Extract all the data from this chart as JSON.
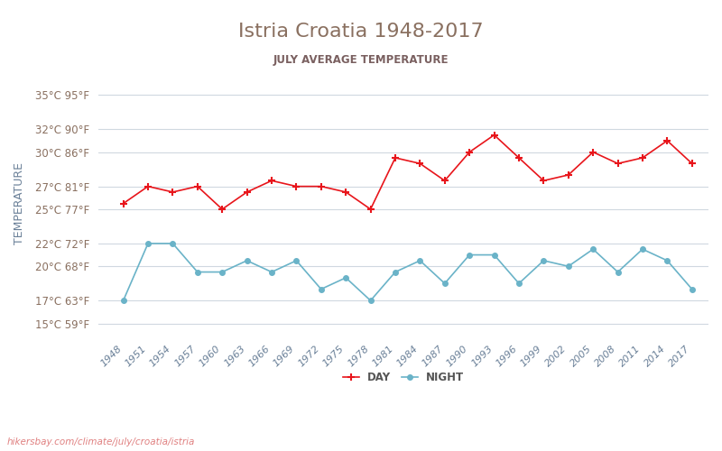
{
  "title": "Istria Croatia 1948-2017",
  "subtitle": "JULY AVERAGE TEMPERATURE",
  "ylabel": "TEMPERATURE",
  "years": [
    1948,
    1951,
    1954,
    1957,
    1960,
    1963,
    1966,
    1969,
    1972,
    1975,
    1978,
    1981,
    1984,
    1987,
    1990,
    1993,
    1996,
    1999,
    2002,
    2005,
    2008,
    2011,
    2014,
    2017
  ],
  "day_temps": [
    25.5,
    27.0,
    26.5,
    27.0,
    25.0,
    26.5,
    27.5,
    27.0,
    27.0,
    26.5,
    25.0,
    29.5,
    29.0,
    27.5,
    30.0,
    31.5,
    29.5,
    27.5,
    28.0,
    30.0,
    29.0,
    29.5,
    31.0,
    29.0
  ],
  "night_temps": [
    17.0,
    22.0,
    22.0,
    19.5,
    19.5,
    20.5,
    19.5,
    20.5,
    18.0,
    19.0,
    17.0,
    19.5,
    20.5,
    18.5,
    21.0,
    21.0,
    18.5,
    20.5,
    20.0,
    21.5,
    19.5,
    21.5,
    20.5,
    18.0
  ],
  "day_color": "#e8151b",
  "night_color": "#6ab3c8",
  "title_color": "#8a7060",
  "subtitle_color": "#7a6060",
  "axis_label_color": "#6a8098",
  "tick_color": "#8a7060",
  "background_color": "#ffffff",
  "grid_color": "#d0d8e0",
  "yticks_c": [
    15,
    17,
    20,
    22,
    25,
    27,
    30,
    32,
    35
  ],
  "yticks_f": [
    59,
    63,
    68,
    72,
    77,
    81,
    86,
    90,
    95
  ],
  "ymin": 14,
  "ymax": 37,
  "url_text": "hikersbay.com/climate/july/croatia/istria",
  "url_color": "#e08080",
  "legend_night": "NIGHT",
  "legend_day": "DAY"
}
